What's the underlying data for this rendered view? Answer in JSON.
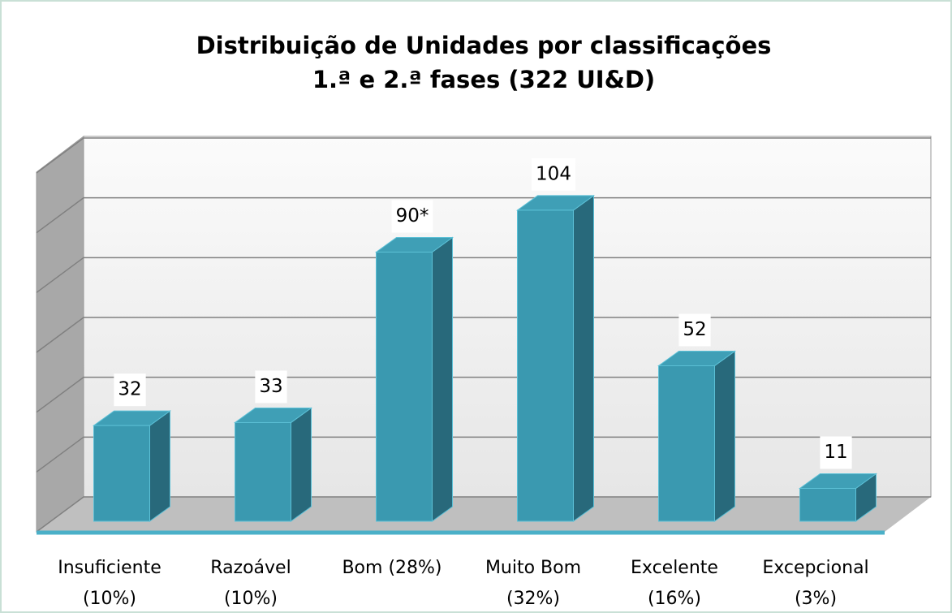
{
  "chart_data": {
    "type": "bar3d",
    "title": [
      "Distribuição de Unidades por classificações",
      "1.ª e 2.ª fases (322 UI&D)"
    ],
    "categories": [
      [
        "Insuficiente",
        "(10%)"
      ],
      [
        "Razoável",
        "(10%)"
      ],
      [
        "Bom (28%)"
      ],
      [
        "Muito Bom",
        "(32%)"
      ],
      [
        "Excelente",
        "(16%)"
      ],
      [
        "Excepcional",
        "(3%)"
      ]
    ],
    "values": [
      32,
      33,
      90,
      104,
      52,
      11
    ],
    "value_labels": [
      "32",
      "33",
      "90*",
      "104",
      "52",
      "11"
    ],
    "color": "#3a99b0",
    "ylim": [
      0,
      120
    ],
    "yticks": [
      0,
      20,
      40,
      60,
      80,
      100,
      120
    ],
    "grid": true
  }
}
